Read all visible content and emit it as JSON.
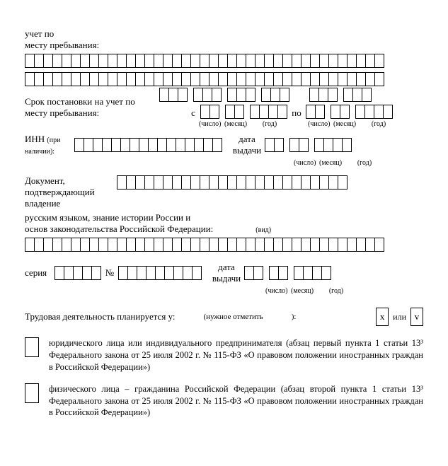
{
  "section1": {
    "line1": "учет по",
    "line2": "месту пребывания:"
  },
  "section2": {
    "line1": "Срок постановки на учет по",
    "line2": "месту пребывания:",
    "s": "с",
    "po": "по",
    "cap_num": "(число)",
    "cap_mon": "(месяц)",
    "cap_year": "(год)"
  },
  "inn": {
    "label": "ИНН",
    "paren1": "(при",
    "paren2": "наличии):",
    "date_l1": "дата",
    "date_l2": "выдачи",
    "cap_num": "(число)",
    "cap_mon": "(месяц)",
    "cap_year": "(год)"
  },
  "doc": {
    "l1": "Документ,",
    "l2": "подтверждающий",
    "l3": "владение",
    "l4": "русским языком, знание истории России и",
    "l5": "основ законодательства Российской Федерации:",
    "vid": "(вид)"
  },
  "doc2": {
    "seria": "серия",
    "no": "№",
    "date_l1": "дата",
    "date_l2": "выдачи",
    "cap_num": "(число)",
    "cap_mon": "(месяц)",
    "cap_year": "(год)"
  },
  "work": {
    "label": "Трудовая деятельность планируется у:",
    "mark": "(нужное отметить",
    "close": "):",
    "x": "x",
    "ili": "или",
    "v": "v"
  },
  "opt1": "юридического лица или индивидуального предпринимателя (абзац первый пункта 1 статьи 13³ Федерального закона от 25 июля 2002 г. № 115-ФЗ «О правовом положении иностранных граждан в Российской Федерации»)",
  "opt2": "физического лица – гражданина Российской Федерации (абзац второй пункта 1 статьи 13³ Федерального закона  от 25 июля 2002 г. № 115-ФЗ «О правовом положении иностранных граждан в Российской Федерации»)"
}
